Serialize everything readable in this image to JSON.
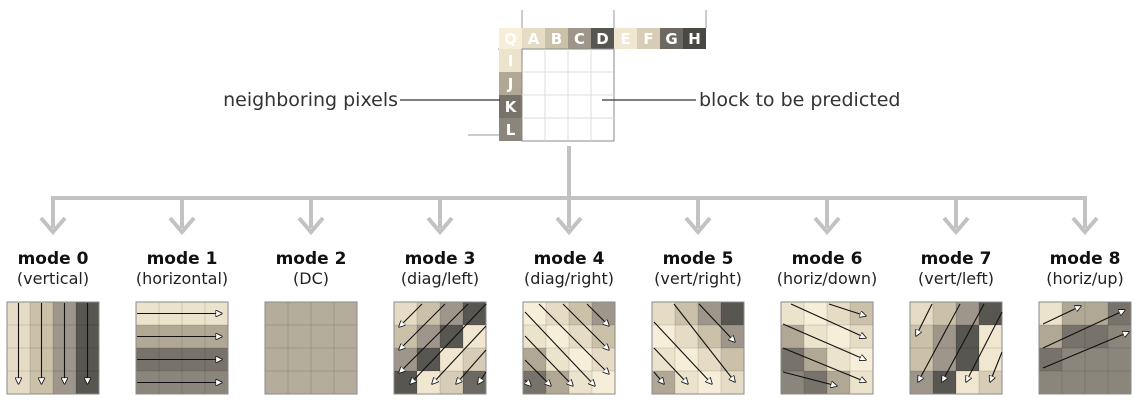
{
  "colors": {
    "connector": "#c2c2c2",
    "grid_line": "#c8c8c8",
    "block_border": "#8a8a8a",
    "palette": {
      "Q": "#f6eed8",
      "A": "#e6dcc5",
      "B": "#cbc1a9",
      "C": "#9e968a",
      "D": "#585650",
      "E": "#f1e6cf",
      "F": "#d7cdb6",
      "G": "#6b6961",
      "H": "#4a4843",
      "I": "#ece3cc",
      "J": "#b0a895",
      "K": "#77736a",
      "L": "#8b867b"
    },
    "mode2_fill": "#b4ad9c"
  },
  "diagram": {
    "top_labels": [
      "Q",
      "A",
      "B",
      "C",
      "D",
      "E",
      "F",
      "G",
      "H"
    ],
    "left_labels": [
      "I",
      "J",
      "K",
      "L"
    ],
    "annotation_left": "neighboring pixels",
    "annotation_right": "block to be predicted"
  },
  "modes": [
    {
      "title": "mode 0",
      "subtitle": "(vertical)"
    },
    {
      "title": "mode 1",
      "subtitle": "(horizontal)"
    },
    {
      "title": "mode 2",
      "subtitle": "(DC)"
    },
    {
      "title": "mode 3",
      "subtitle": "(diag/left)"
    },
    {
      "title": "mode 4",
      "subtitle": "(diag/right)"
    },
    {
      "title": "mode 5",
      "subtitle": "(vert/right)"
    },
    {
      "title": "mode 6",
      "subtitle": "(horiz/down)"
    },
    {
      "title": "mode 7",
      "subtitle": "(vert/left)"
    },
    {
      "title": "mode 8",
      "subtitle": "(horiz/up)"
    }
  ]
}
